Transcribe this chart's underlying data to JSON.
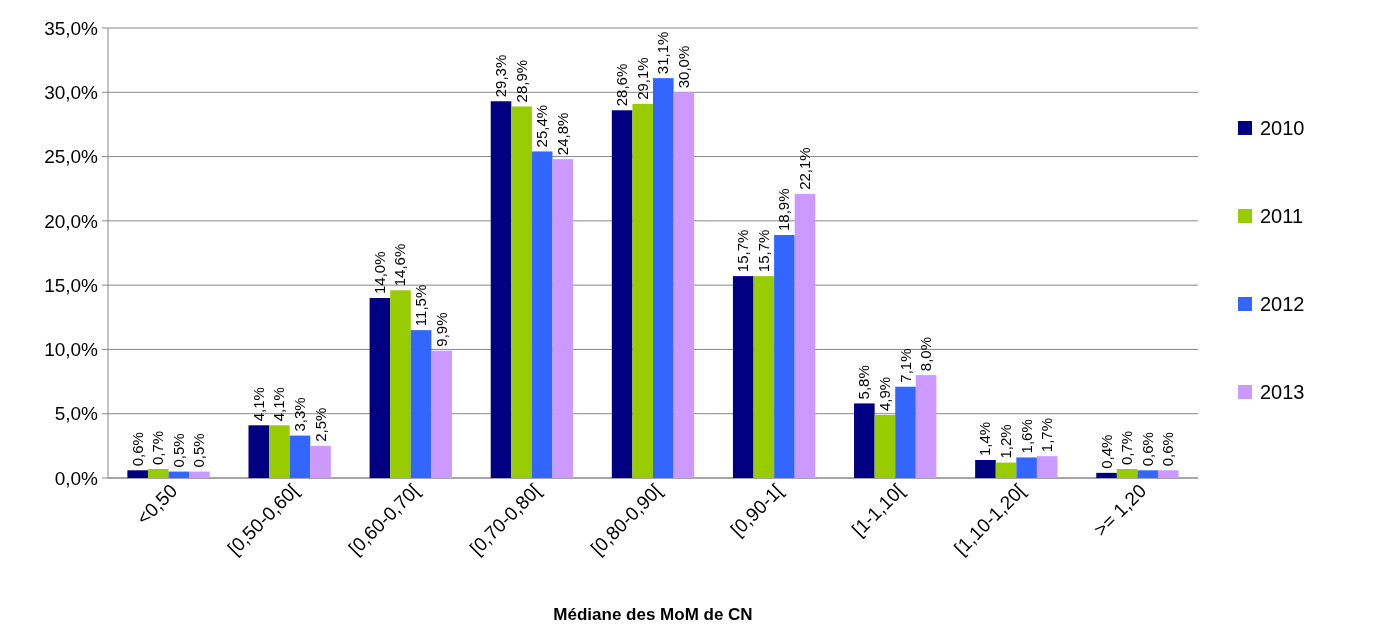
{
  "chart_data": {
    "type": "bar",
    "xlabel": "Médiane des MoM de CN",
    "categories": [
      "<0,50",
      "[0,50-0,60[",
      "[0,60-0,70[",
      "[0,70-0,80[",
      "[0,80-0,90[",
      "[0,90-1[",
      "[1-1,10[",
      "[1,10-1,20[",
      ">= 1,20"
    ],
    "series": [
      {
        "name": "2010",
        "color": "#000080",
        "values": [
          0.6,
          4.1,
          14.0,
          29.3,
          28.6,
          15.7,
          5.8,
          1.4,
          0.4
        ],
        "value_labels": [
          "0,6%",
          "4,1%",
          "14,0%",
          "29,3%",
          "28,6%",
          "15,7%",
          "5,8%",
          "1,4%",
          "0,4%"
        ]
      },
      {
        "name": "2011",
        "color": "#99cc00",
        "values": [
          0.7,
          4.1,
          14.6,
          28.9,
          29.1,
          15.7,
          4.9,
          1.2,
          0.7
        ],
        "value_labels": [
          "0,7%",
          "4,1%",
          "14,6%",
          "28,9%",
          "29,1%",
          "15,7%",
          "4,9%",
          "1,2%",
          "0,7%"
        ]
      },
      {
        "name": "2012",
        "color": "#3366ff",
        "values": [
          0.5,
          3.3,
          11.5,
          25.4,
          31.1,
          18.9,
          7.1,
          1.6,
          0.6
        ],
        "value_labels": [
          "0,5%",
          "3,3%",
          "11,5%",
          "25,4%",
          "31,1%",
          "18,9%",
          "7,1%",
          "1,6%",
          "0,6%"
        ]
      },
      {
        "name": "2013",
        "color": "#cc99ff",
        "values": [
          0.5,
          2.5,
          9.9,
          24.8,
          30.0,
          22.1,
          8.0,
          1.7,
          0.6
        ],
        "value_labels": [
          "0,5%",
          "2,5%",
          "9,9%",
          "24,8%",
          "30,0%",
          "22,1%",
          "8,0%",
          "1,7%",
          "0,6%"
        ]
      }
    ],
    "ylim": [
      0,
      35
    ],
    "yticks": [
      {
        "value": 0,
        "label": "0,0%"
      },
      {
        "value": 5,
        "label": "5,0%"
      },
      {
        "value": 10,
        "label": "10,0%"
      },
      {
        "value": 15,
        "label": "15,0%"
      },
      {
        "value": 20,
        "label": "20,0%"
      },
      {
        "value": 25,
        "label": "25,0%"
      },
      {
        "value": 30,
        "label": "30,0%"
      },
      {
        "value": 35,
        "label": "35,0%"
      }
    ],
    "grid": "y",
    "legend": "right"
  }
}
